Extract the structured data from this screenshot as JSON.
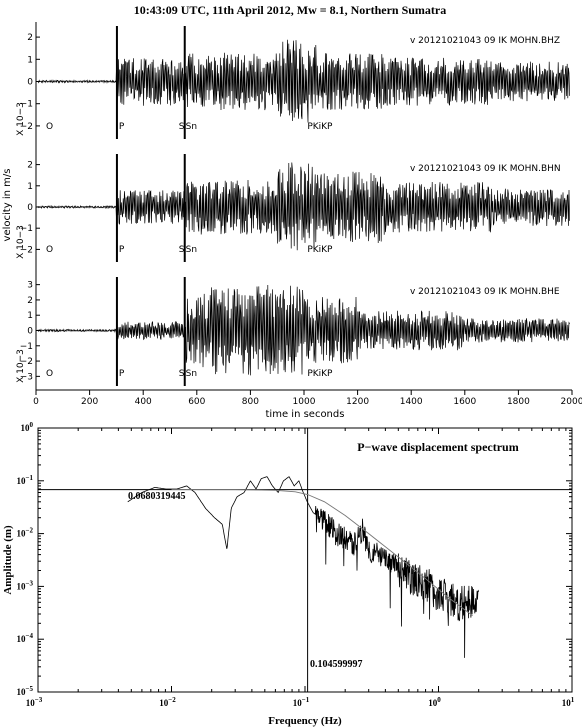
{
  "figure_title": "10:43:09 UTC, 11th April 2012, Mw = 8.1, Northern Sumatra",
  "seismogram": {
    "y_label": "velocity in m/s",
    "x_label": "time in seconds",
    "x_ticks": [
      "0",
      "200",
      "400",
      "600",
      "800",
      "1000",
      "1200",
      "1400",
      "1600",
      "1800",
      "2000"
    ],
    "xlim": [
      0,
      2000
    ],
    "channels": [
      {
        "label": "v 20121021043 09 IK MOHN.BHZ",
        "scale_label": "X 10−3",
        "y_ticks": [
          "2",
          "1",
          "0",
          "−1",
          "−2"
        ],
        "ylim": [
          -2.5,
          2.5
        ],
        "phases": [
          {
            "label": "O",
            "time": 0
          },
          {
            "label": "P",
            "time": 302
          },
          {
            "label": "S",
            "time": 555
          },
          {
            "label": "Sn",
            "time": 562
          },
          {
            "label": "PKiKP",
            "time": 1005
          }
        ]
      },
      {
        "label": "v 20121021043 09 IK MOHN.BHN",
        "scale_label": "X 10−3",
        "y_ticks": [
          "2",
          "1",
          "0",
          "−1",
          "−2"
        ],
        "ylim": [
          -2.5,
          2.5
        ],
        "phases": [
          {
            "label": "O",
            "time": 0
          },
          {
            "label": "P",
            "time": 302
          },
          {
            "label": "S",
            "time": 555
          },
          {
            "label": "Sn",
            "time": 562
          },
          {
            "label": "PKiKP",
            "time": 1005
          }
        ]
      },
      {
        "label": "v 20121021043 09 IK MOHN.BHE",
        "scale_label": "X 10−3",
        "y_ticks": [
          "3",
          "2",
          "1",
          "0",
          "−1",
          "−2",
          "−3"
        ],
        "ylim": [
          -3.5,
          3.5
        ],
        "phases": [
          {
            "label": "O",
            "time": 0
          },
          {
            "label": "P",
            "time": 302
          },
          {
            "label": "S",
            "time": 555
          },
          {
            "label": "Sn",
            "time": 562
          },
          {
            "label": "PKiKP",
            "time": 1005
          }
        ]
      }
    ]
  },
  "spectrum": {
    "title": "P−wave displacement spectrum",
    "x_label": "Frequency (Hz)",
    "y_label": "Amplitude (m)",
    "x_log_range": [
      -3,
      1
    ],
    "y_log_range": [
      -5,
      0
    ],
    "x_ticks": [
      {
        "base": "10",
        "exp": "−3"
      },
      {
        "base": "10",
        "exp": "−2"
      },
      {
        "base": "10",
        "exp": "−1"
      },
      {
        "base": "10",
        "exp": "0"
      },
      {
        "base": "10",
        "exp": "1"
      }
    ],
    "y_ticks": [
      {
        "base": "10",
        "exp": "0"
      },
      {
        "base": "10",
        "exp": "−1"
      },
      {
        "base": "10",
        "exp": "−2"
      },
      {
        "base": "10",
        "exp": "−3"
      },
      {
        "base": "10",
        "exp": "−4"
      },
      {
        "base": "10",
        "exp": "−5"
      }
    ],
    "plateau_label": "0.0680319445",
    "corner_label": "0.104599997",
    "plateau_value": 0.0680319445,
    "corner_frequency": 0.104599997
  },
  "chart_data": [
    {
      "type": "line",
      "title": "10:43:09 UTC, 11th April 2012, Mw = 8.1, Northern Sumatra",
      "xlabel": "time in seconds",
      "ylabel": "velocity in m/s",
      "xlim": [
        0,
        2000
      ],
      "series": [
        {
          "name": "v 20121021043 09 IK MOHN.BHZ",
          "ylim": [
            -2.5,
            2.5
          ],
          "segments": [
            [
              0,
              300,
              0.05
            ],
            [
              300,
              560,
              1.1
            ],
            [
              560,
              900,
              1.3
            ],
            [
              900,
              1050,
              1.9
            ],
            [
              1050,
              1300,
              1.3
            ],
            [
              1300,
              1700,
              1.1
            ],
            [
              1700,
              2000,
              0.9
            ]
          ]
        },
        {
          "name": "v 20121021043 09 IK MOHN.BHN",
          "ylim": [
            -2.5,
            2.5
          ],
          "segments": [
            [
              0,
              300,
              0.05
            ],
            [
              300,
              560,
              0.8
            ],
            [
              560,
              900,
              1.3
            ],
            [
              900,
              1050,
              2.1
            ],
            [
              1050,
              1300,
              1.7
            ],
            [
              1300,
              1700,
              1.2
            ],
            [
              1700,
              2000,
              0.9
            ]
          ]
        },
        {
          "name": "v 20121021043 09 IK MOHN.BHE",
          "ylim": [
            -3.5,
            3.5
          ],
          "segments": [
            [
              0,
              300,
              0.07
            ],
            [
              300,
              560,
              0.6
            ],
            [
              560,
              650,
              2.4
            ],
            [
              650,
              1000,
              3.0
            ],
            [
              1000,
              1200,
              2.2
            ],
            [
              1200,
              1600,
              1.3
            ],
            [
              1600,
              2000,
              0.8
            ]
          ]
        }
      ]
    },
    {
      "type": "line",
      "title": "P−wave displacement spectrum",
      "xlabel": "Frequency (Hz)",
      "ylabel": "Amplitude (m)",
      "x_scale": "log",
      "y_scale": "log",
      "xlim": [
        0.001,
        10
      ],
      "ylim": [
        1e-05,
        1
      ],
      "series": [
        {
          "x": [
            0.0047,
            0.006,
            0.0075,
            0.009,
            0.011,
            0.013,
            0.015,
            0.018,
            0.021,
            0.024,
            0.026,
            0.028,
            0.031,
            0.035,
            0.039,
            0.043,
            0.047,
            0.052,
            0.057,
            0.063,
            0.069,
            0.076,
            0.083,
            0.09,
            0.097,
            0.104,
            0.115,
            0.13,
            0.15,
            0.17,
            0.2,
            0.23,
            0.27,
            0.3,
            0.35,
            0.4,
            0.45,
            0.5,
            0.6,
            0.7,
            0.8,
            0.9,
            1.0,
            1.2,
            1.4,
            1.6,
            1.8,
            2.0
          ],
          "y": [
            0.04,
            0.06,
            0.075,
            0.07,
            0.07,
            0.08,
            0.06,
            0.03,
            0.02,
            0.015,
            0.005,
            0.03,
            0.05,
            0.06,
            0.1,
            0.07,
            0.11,
            0.12,
            0.08,
            0.06,
            0.1,
            0.12,
            0.08,
            0.1,
            0.06,
            0.04,
            0.025,
            0.02,
            0.015,
            0.01,
            0.008,
            0.006,
            0.012,
            0.005,
            0.004,
            0.003,
            0.003,
            0.002,
            0.0015,
            0.0012,
            0.0011,
            0.0009,
            0.0007,
            0.0006,
            0.0005,
            0.0005,
            0.0005,
            0.0005
          ]
        },
        {
          "x": [
            0.01,
            0.03,
            0.06,
            0.0846,
            0.1046,
            0.14,
            0.2,
            0.3,
            0.5,
            0.8,
            1.2,
            1.8
          ],
          "y": [
            0.068,
            0.068,
            0.066,
            0.062,
            0.055,
            0.04,
            0.022,
            0.01,
            0.0036,
            0.0014,
            0.0006,
            0.00028
          ]
        }
      ]
    }
  ]
}
